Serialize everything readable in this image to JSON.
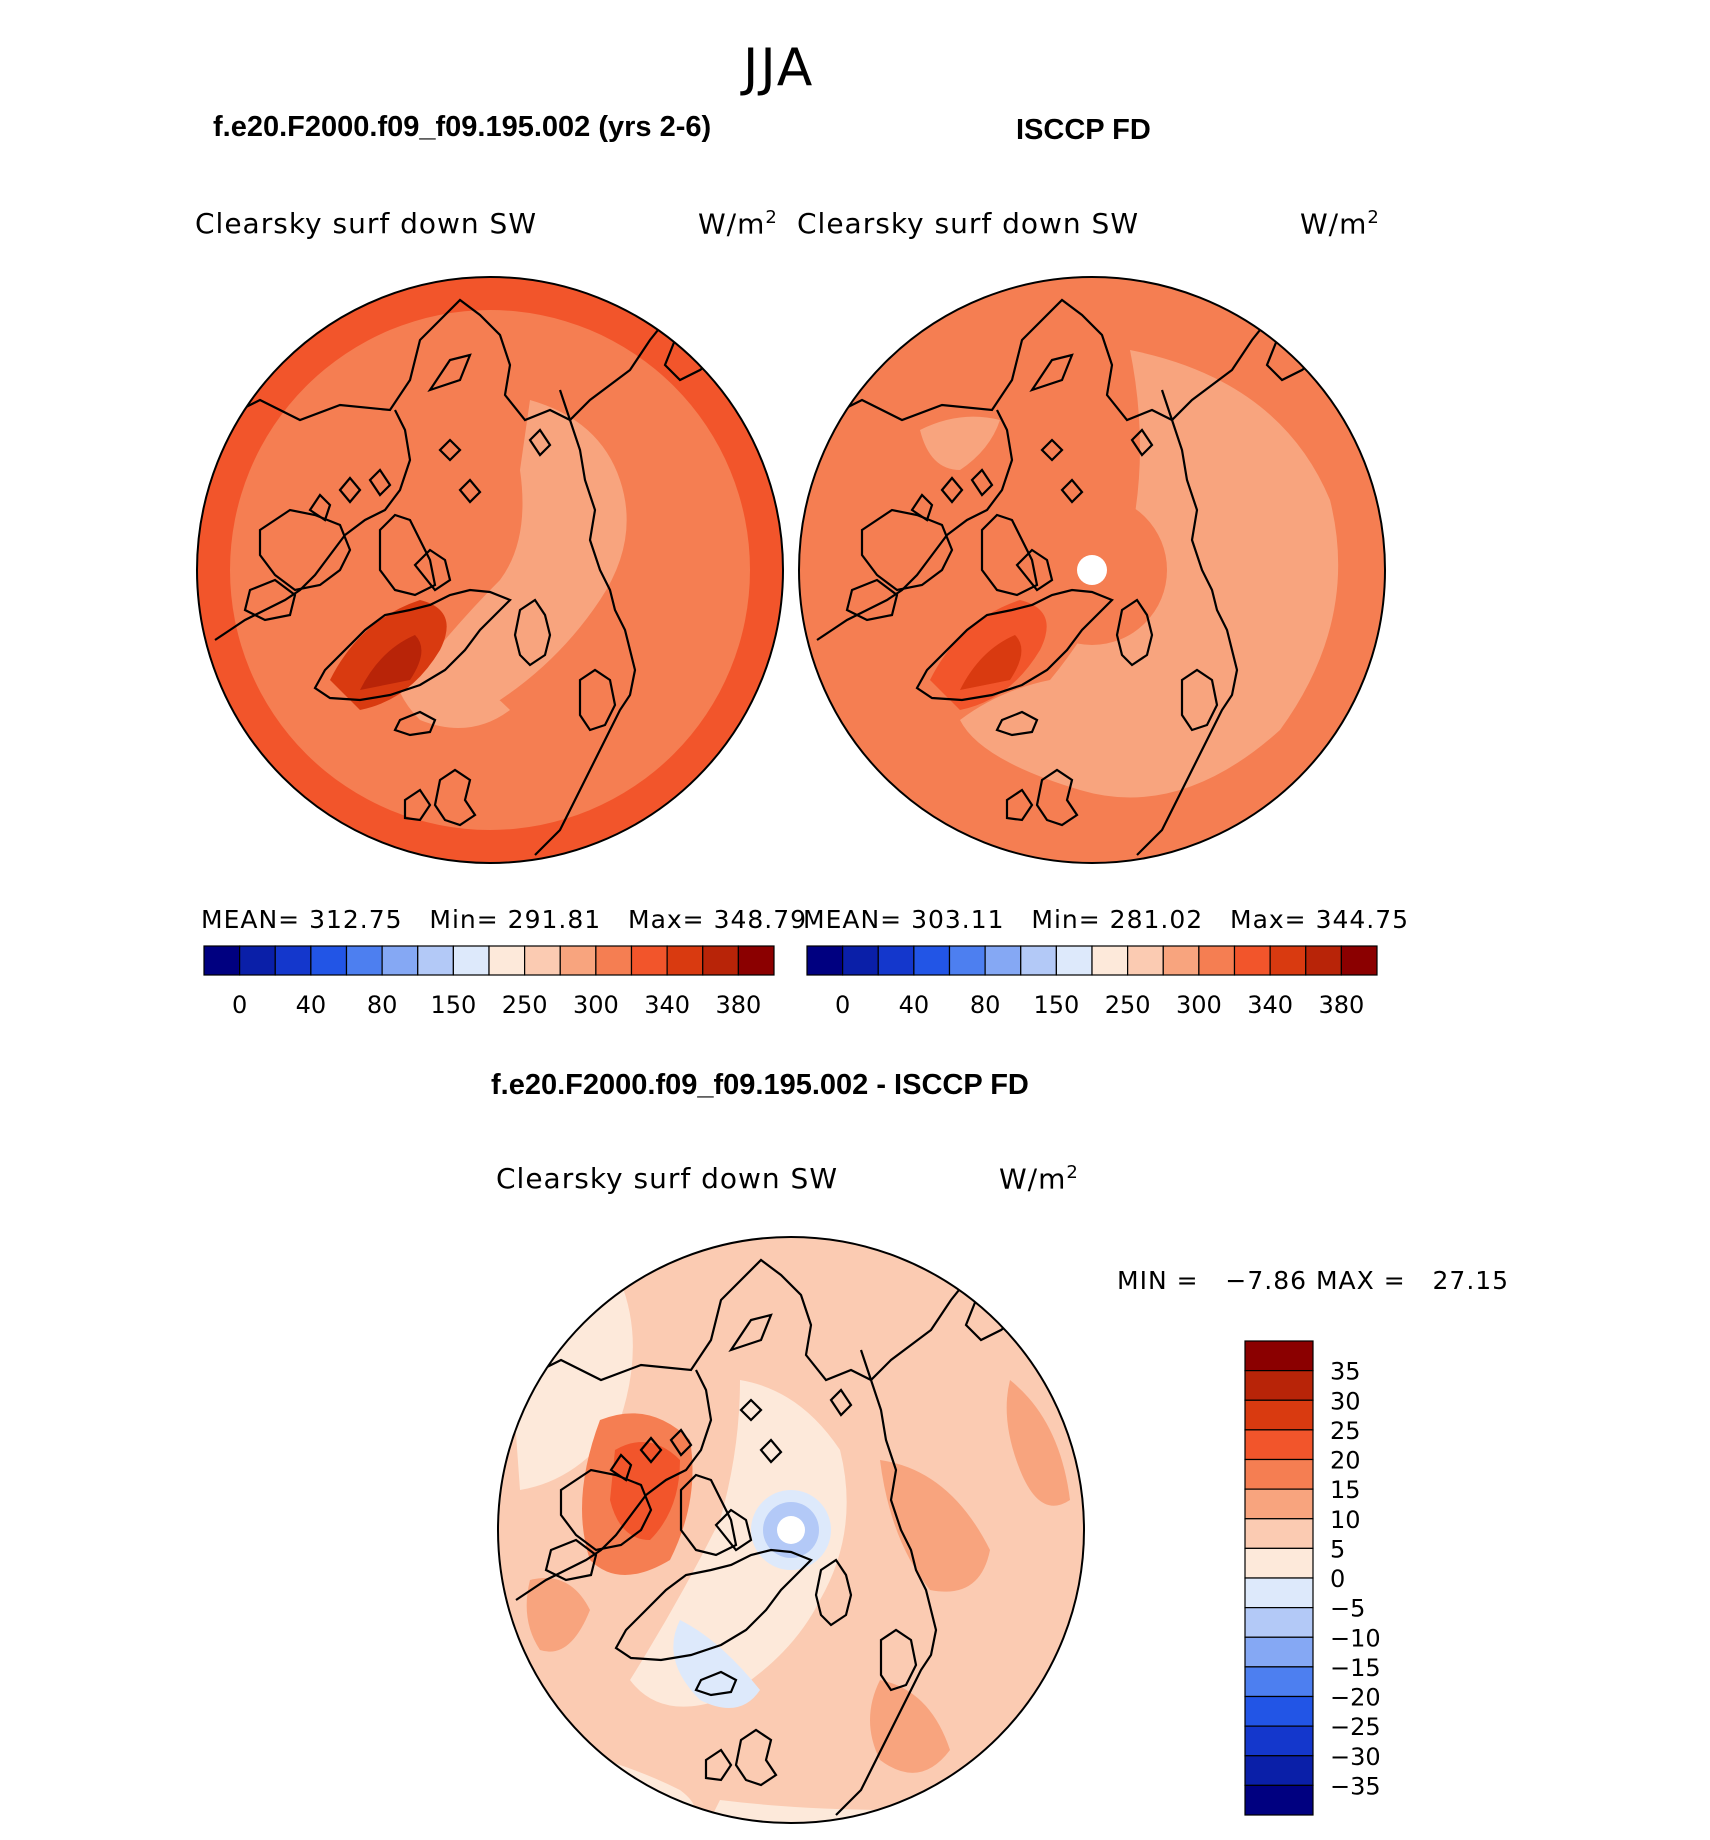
{
  "season": "JJA",
  "panel_model": {
    "title": "f.e20.F2000.f09_f09.195.002 (yrs 2-6)",
    "variable": "Clearsky surf down SW",
    "units": "W/m",
    "units_exp": "2",
    "mean_label": "MEAN=",
    "mean_value": "312.75",
    "min_label": "Min=",
    "min_value": "291.81",
    "max_label": "Max=",
    "max_value": "348.79"
  },
  "panel_obs": {
    "title": "ISCCP FD",
    "variable": "Clearsky surf down SW",
    "units": "W/m",
    "units_exp": "2",
    "mean_label": "MEAN=",
    "mean_value": "303.11",
    "min_label": "Min=",
    "min_value": "281.02",
    "max_label": "Max=",
    "max_value": "344.75"
  },
  "panel_diff": {
    "title": "f.e20.F2000.f09_f09.195.002 - ISCCP FD",
    "variable": "Clearsky surf down SW",
    "units": "W/m",
    "units_exp": "2",
    "min_label": "MIN =",
    "min_value": "−7.86",
    "max_label": "MAX =",
    "max_value": "27.15"
  },
  "abs_colorbar": {
    "colors": [
      "#000080",
      "#0a1fa8",
      "#1437cc",
      "#2255e6",
      "#4d7ff0",
      "#85a8f4",
      "#b3c9f7",
      "#dde9fb",
      "#fde9da",
      "#fbcbb2",
      "#f8a47e",
      "#f57e52",
      "#f2552b",
      "#d93a10",
      "#b82408",
      "#8b0000"
    ],
    "ticks": [
      "0",
      "40",
      "80",
      "150",
      "250",
      "300",
      "340",
      "380"
    ]
  },
  "diff_colorbar": {
    "colors": [
      "#000080",
      "#0a1fa8",
      "#1437cc",
      "#2255e6",
      "#4d7ff0",
      "#85a8f4",
      "#b3c9f7",
      "#dde9fb",
      "#fde9da",
      "#fbcbb2",
      "#f8a47e",
      "#f57e52",
      "#f2552b",
      "#d93a10",
      "#b82408",
      "#8b0000"
    ],
    "ticks": [
      "35",
      "30",
      "25",
      "20",
      "15",
      "10",
      "5",
      "0",
      "−5",
      "−10",
      "−15",
      "−20",
      "−25",
      "−30",
      "−35"
    ]
  },
  "colors": {
    "map_base": "#f57e52",
    "map_light": "#f8a47e",
    "map_dark": "#f2552b",
    "map_darker": "#d93a10",
    "diff_base": "#fbcbb2",
    "diff_light": "#fde9da",
    "diff_neg": "#dde9fb",
    "diff_neg2": "#b3c9f7",
    "diff_pos": "#f8a47e",
    "diff_pos2": "#f2552b",
    "coast": "#000000"
  }
}
